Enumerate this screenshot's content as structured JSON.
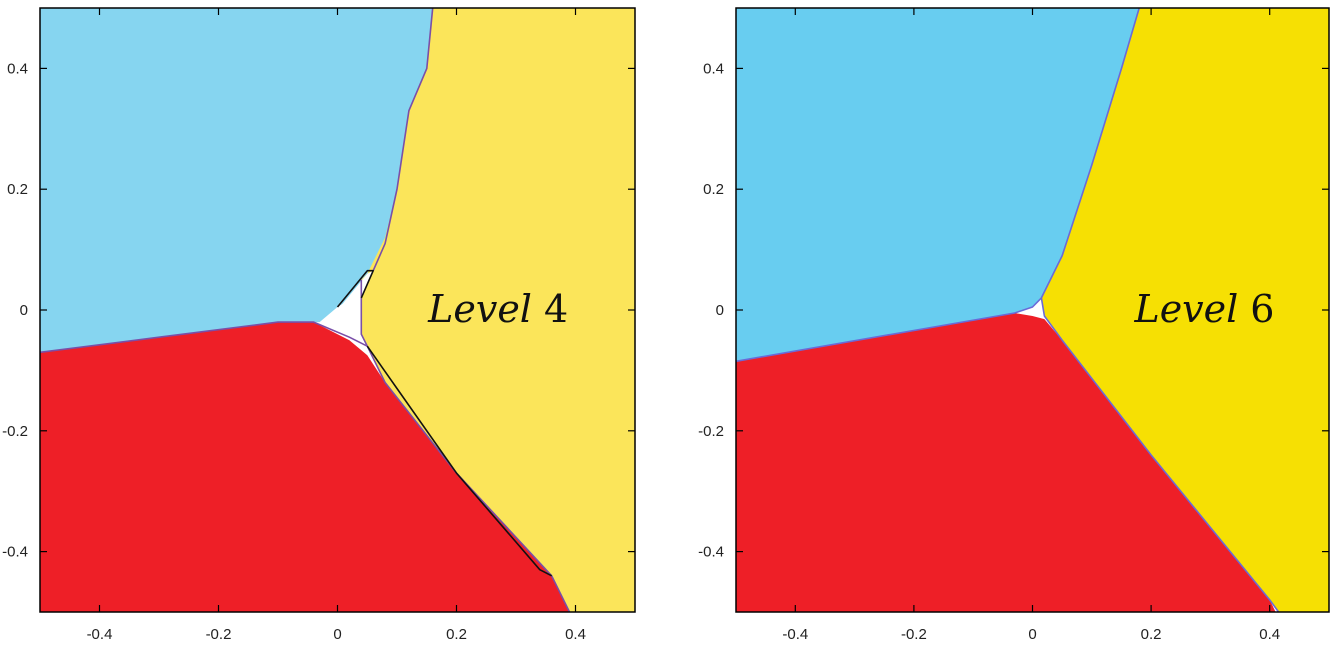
{
  "chart_data": [
    {
      "type": "area",
      "title": "",
      "xlabel": "",
      "ylabel": "",
      "xlim": [
        -0.5,
        0.5
      ],
      "ylim": [
        -0.5,
        0.5
      ],
      "xticks": [
        -0.4,
        -0.2,
        0,
        0.2,
        0.4
      ],
      "yticks": [
        -0.4,
        -0.2,
        0,
        0.2,
        0.4
      ],
      "xtick_labels": [
        "-0.4",
        "-0.2",
        "0",
        "0.2",
        "0.4"
      ],
      "ytick_labels": [
        "-0.4",
        "-0.2",
        "0",
        "0.2",
        "0.4"
      ],
      "grid": false,
      "annotation": {
        "text": "Level",
        "number": "4",
        "x": 0.27,
        "y": -0.02
      },
      "regions": [
        {
          "color": "#86d5f0",
          "points": [
            [
              -0.5,
              0.5
            ],
            [
              0.16,
              0.5
            ],
            [
              0.15,
              0.4
            ],
            [
              0.12,
              0.33
            ],
            [
              0.1,
              0.2
            ],
            [
              0.08,
              0.11
            ],
            [
              0.06,
              0.06
            ],
            [
              0.05,
              0.035
            ],
            [
              0.0,
              0.005
            ],
            [
              -0.03,
              -0.02
            ],
            [
              -0.1,
              -0.02
            ],
            [
              -0.3,
              -0.045
            ],
            [
              -0.5,
              -0.07
            ]
          ]
        },
        {
          "color": "#fbe55a",
          "points": [
            [
              0.16,
              0.5
            ],
            [
              0.5,
              0.5
            ],
            [
              0.5,
              -0.5
            ],
            [
              0.39,
              -0.5
            ],
            [
              0.36,
              -0.44
            ],
            [
              0.2,
              -0.27
            ],
            [
              0.08,
              -0.12
            ],
            [
              0.05,
              -0.06
            ],
            [
              0.04,
              -0.04
            ],
            [
              0.04,
              0.05
            ],
            [
              0.05,
              0.06
            ],
            [
              0.08,
              0.12
            ],
            [
              0.1,
              0.2
            ],
            [
              0.12,
              0.33
            ],
            [
              0.15,
              0.4
            ]
          ]
        },
        {
          "color": "#ee1f27",
          "points": [
            [
              -0.5,
              -0.07
            ],
            [
              -0.3,
              -0.045
            ],
            [
              -0.1,
              -0.02
            ],
            [
              -0.04,
              -0.02
            ],
            [
              0.02,
              -0.05
            ],
            [
              0.05,
              -0.075
            ],
            [
              0.08,
              -0.12
            ],
            [
              0.2,
              -0.27
            ],
            [
              0.36,
              -0.44
            ],
            [
              0.39,
              -0.5
            ],
            [
              -0.5,
              -0.5
            ]
          ]
        },
        {
          "color": "#ffffff",
          "points": [
            [
              0.0,
              0.0
            ],
            [
              0.05,
              0.06
            ],
            [
              0.06,
              0.065
            ],
            [
              0.04,
              0.02
            ],
            [
              0.04,
              -0.04
            ],
            [
              0.05,
              -0.06
            ],
            [
              0.02,
              -0.045
            ],
            [
              -0.02,
              -0.02
            ]
          ]
        }
      ],
      "boundaries": [
        {
          "color": "#7a4fa8",
          "points": [
            [
              0.16,
              0.5
            ],
            [
              0.15,
              0.4
            ],
            [
              0.12,
              0.33
            ],
            [
              0.1,
              0.2
            ],
            [
              0.08,
              0.11
            ],
            [
              0.06,
              0.065
            ]
          ]
        },
        {
          "color": "#7a4fa8",
          "points": [
            [
              -0.5,
              -0.07
            ],
            [
              -0.3,
              -0.045
            ],
            [
              -0.1,
              -0.02
            ],
            [
              -0.04,
              -0.02
            ],
            [
              0.02,
              -0.045
            ],
            [
              0.05,
              -0.06
            ]
          ]
        },
        {
          "color": "#7a4fa8",
          "points": [
            [
              0.04,
              0.05
            ],
            [
              0.04,
              -0.04
            ],
            [
              0.05,
              -0.06
            ],
            [
              0.08,
              -0.12
            ],
            [
              0.2,
              -0.27
            ],
            [
              0.36,
              -0.44
            ],
            [
              0.39,
              -0.5
            ]
          ]
        },
        {
          "color": "#111111",
          "points": [
            [
              0.05,
              -0.06
            ],
            [
              0.1,
              -0.13
            ],
            [
              0.2,
              -0.27
            ],
            [
              0.34,
              -0.43
            ],
            [
              0.36,
              -0.44
            ]
          ]
        },
        {
          "color": "#111111",
          "points": [
            [
              0.0,
              0.005
            ],
            [
              0.05,
              0.065
            ],
            [
              0.06,
              0.065
            ],
            [
              0.04,
              0.02
            ]
          ]
        }
      ]
    },
    {
      "type": "area",
      "title": "",
      "xlabel": "",
      "ylabel": "",
      "xlim": [
        -0.5,
        0.5
      ],
      "ylim": [
        -0.5,
        0.5
      ],
      "xticks": [
        -0.4,
        -0.2,
        0,
        0.2,
        0.4
      ],
      "yticks": [
        -0.4,
        -0.2,
        0,
        0.2,
        0.4
      ],
      "xtick_labels": [
        "-0.4",
        "-0.2",
        "0",
        "0.2",
        "0.4"
      ],
      "ytick_labels": [
        "-0.4",
        "-0.2",
        "0",
        "0.2",
        "0.4"
      ],
      "grid": false,
      "annotation": {
        "text": "Level",
        "number": "6",
        "x": 0.29,
        "y": -0.02
      },
      "regions": [
        {
          "color": "#68cdf0",
          "points": [
            [
              -0.5,
              0.5
            ],
            [
              0.18,
              0.5
            ],
            [
              0.15,
              0.4
            ],
            [
              0.1,
              0.24
            ],
            [
              0.05,
              0.09
            ],
            [
              0.015,
              0.02
            ],
            [
              0.0,
              0.005
            ],
            [
              -0.03,
              -0.005
            ],
            [
              -0.5,
              -0.085
            ]
          ]
        },
        {
          "color": "#f6e003",
          "points": [
            [
              0.18,
              0.5
            ],
            [
              0.5,
              0.5
            ],
            [
              0.5,
              -0.5
            ],
            [
              0.415,
              -0.5
            ],
            [
              0.4,
              -0.48
            ],
            [
              0.2,
              -0.24
            ],
            [
              0.05,
              -0.05
            ],
            [
              0.02,
              -0.01
            ],
            [
              0.015,
              0.02
            ],
            [
              0.05,
              0.09
            ],
            [
              0.1,
              0.24
            ],
            [
              0.15,
              0.4
            ]
          ]
        },
        {
          "color": "#ee1f27",
          "points": [
            [
              -0.5,
              -0.085
            ],
            [
              -0.03,
              -0.005
            ],
            [
              0.0,
              -0.01
            ],
            [
              0.02,
              -0.015
            ],
            [
              0.05,
              -0.05
            ],
            [
              0.2,
              -0.24
            ],
            [
              0.4,
              -0.48
            ],
            [
              0.41,
              -0.5
            ],
            [
              -0.5,
              -0.5
            ]
          ]
        }
      ],
      "boundaries": [
        {
          "color": "#6a6ad8",
          "points": [
            [
              0.18,
              0.5
            ],
            [
              0.15,
              0.4
            ],
            [
              0.1,
              0.24
            ],
            [
              0.05,
              0.09
            ],
            [
              0.015,
              0.02
            ],
            [
              0.0,
              0.005
            ],
            [
              -0.03,
              -0.005
            ],
            [
              -0.5,
              -0.085
            ]
          ]
        },
        {
          "color": "#6a6ad8",
          "points": [
            [
              0.015,
              0.02
            ],
            [
              0.02,
              -0.01
            ],
            [
              0.05,
              -0.05
            ],
            [
              0.2,
              -0.24
            ],
            [
              0.4,
              -0.48
            ],
            [
              0.415,
              -0.5
            ]
          ]
        }
      ]
    }
  ]
}
